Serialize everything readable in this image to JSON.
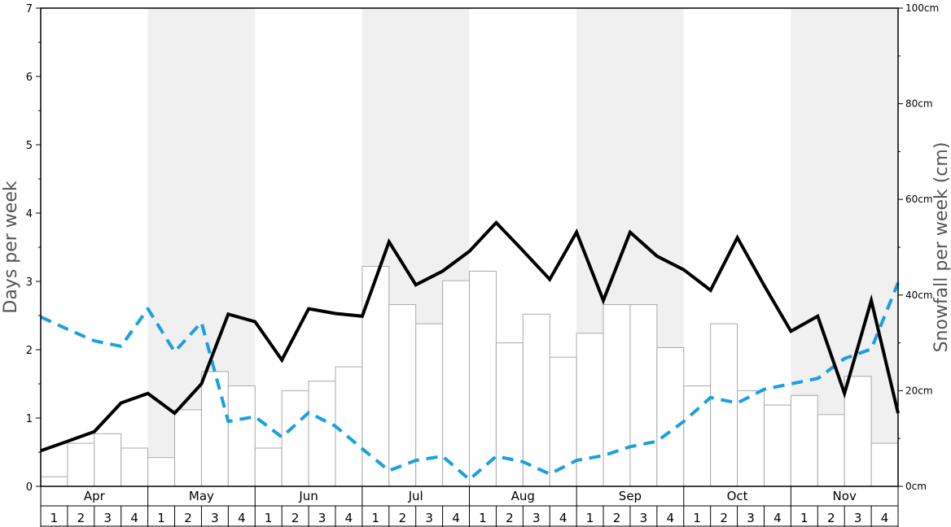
{
  "chart_data": {
    "type": "bar+line",
    "months": [
      "Apr",
      "May",
      "Jun",
      "Jul",
      "Aug",
      "Sep",
      "Oct",
      "Nov"
    ],
    "week_labels": [
      "1",
      "2",
      "3",
      "4"
    ],
    "left_axis": {
      "label": "Days per week",
      "ylim": [
        0,
        7
      ],
      "ticks": [
        "0",
        "1",
        "2",
        "3",
        "4",
        "5",
        "6",
        "7"
      ]
    },
    "right_axis": {
      "label": "Snowfall per week (cm)",
      "ylim": [
        0,
        100
      ],
      "ticks": [
        "0cm",
        "20cm",
        "40cm",
        "60cm",
        "80cm",
        "100cm"
      ]
    },
    "snowfall_bars_cm": [
      2,
      9,
      11,
      8,
      6,
      16,
      24,
      21,
      8,
      20,
      22,
      25,
      46,
      38,
      34,
      43,
      45,
      30,
      36,
      27,
      32,
      38,
      38,
      29,
      21,
      34,
      20,
      17,
      19,
      15,
      23,
      9
    ],
    "solid_line_days": [
      0.52,
      0.66,
      0.8,
      1.22,
      1.36,
      1.07,
      1.5,
      2.52,
      2.41,
      1.85,
      2.6,
      2.53,
      2.49,
      3.58,
      2.95,
      3.15,
      3.44,
      3.86,
      3.45,
      3.03,
      3.72,
      2.72,
      3.72,
      3.37,
      3.17,
      2.87,
      3.64,
      2.94,
      2.27,
      2.49,
      1.36,
      2.72,
      1.07
    ],
    "dashed_line_days": [
      2.48,
      2.3,
      2.13,
      2.05,
      2.6,
      1.97,
      2.4,
      0.95,
      1.02,
      0.72,
      1.08,
      0.88,
      0.55,
      0.23,
      0.38,
      0.44,
      0.1,
      0.44,
      0.36,
      0.18,
      0.38,
      0.45,
      0.58,
      0.66,
      0.95,
      1.3,
      1.22,
      1.42,
      1.5,
      1.58,
      1.87,
      2.01,
      2.98
    ],
    "colors": {
      "solid_line": "#000000",
      "dashed_line": "#1a9fe0",
      "bar_fill": "#ffffff",
      "bar_stroke": "#aaaaaa",
      "shaded_month": "#f0f0f0"
    }
  }
}
